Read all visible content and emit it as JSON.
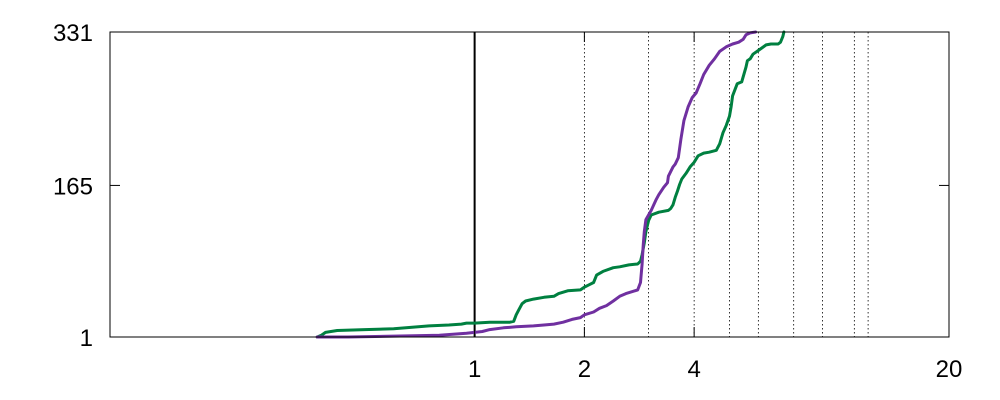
{
  "chart_data": {
    "type": "line",
    "title": "",
    "xlabel": "",
    "ylabel": "",
    "x_scale": "log",
    "xlim": [
      0.1,
      20
    ],
    "ylim": [
      1,
      331
    ],
    "x_ticks": [
      {
        "value": 1,
        "label": "1"
      },
      {
        "value": 2,
        "label": "2"
      },
      {
        "value": 4,
        "label": "4"
      },
      {
        "value": 20,
        "label": "20"
      }
    ],
    "y_ticks": [
      {
        "value": 1,
        "label": "1"
      },
      {
        "value": 165,
        "label": "165"
      },
      {
        "value": 331,
        "label": "331"
      }
    ],
    "reference_lines": {
      "solid": [
        1
      ],
      "dotted": [
        2,
        3,
        4,
        5,
        6,
        7.5,
        9,
        11,
        12
      ]
    },
    "grid": false,
    "legend": "none",
    "series": [
      {
        "color": "#008040",
        "points": [
          [
            0.37,
            1
          ],
          [
            0.38,
            3
          ],
          [
            0.39,
            6
          ],
          [
            0.42,
            8
          ],
          [
            0.5,
            9
          ],
          [
            0.6,
            10
          ],
          [
            0.75,
            13
          ],
          [
            0.85,
            14
          ],
          [
            0.92,
            15
          ],
          [
            0.95,
            16
          ],
          [
            1.0,
            16
          ],
          [
            1.1,
            17
          ],
          [
            1.25,
            17
          ],
          [
            1.28,
            18
          ],
          [
            1.3,
            25
          ],
          [
            1.32,
            30
          ],
          [
            1.35,
            37
          ],
          [
            1.38,
            40
          ],
          [
            1.45,
            42
          ],
          [
            1.55,
            44
          ],
          [
            1.65,
            45
          ],
          [
            1.7,
            48
          ],
          [
            1.8,
            51
          ],
          [
            1.95,
            52
          ],
          [
            2.0,
            55
          ],
          [
            2.05,
            57
          ],
          [
            2.12,
            60
          ],
          [
            2.16,
            68
          ],
          [
            2.25,
            72
          ],
          [
            2.4,
            76
          ],
          [
            2.5,
            77
          ],
          [
            2.65,
            79
          ],
          [
            2.8,
            80
          ],
          [
            2.85,
            83
          ],
          [
            2.88,
            90
          ],
          [
            2.92,
            103
          ],
          [
            2.95,
            115
          ],
          [
            3.0,
            127
          ],
          [
            3.05,
            133
          ],
          [
            3.2,
            136
          ],
          [
            3.4,
            138
          ],
          [
            3.45,
            140
          ],
          [
            3.5,
            144
          ],
          [
            3.55,
            152
          ],
          [
            3.6,
            159
          ],
          [
            3.65,
            166
          ],
          [
            3.7,
            172
          ],
          [
            3.8,
            178
          ],
          [
            3.9,
            185
          ],
          [
            4.0,
            190
          ],
          [
            4.1,
            197
          ],
          [
            4.25,
            200
          ],
          [
            4.4,
            201
          ],
          [
            4.6,
            203
          ],
          [
            4.7,
            210
          ],
          [
            4.8,
            222
          ],
          [
            4.9,
            230
          ],
          [
            5.0,
            240
          ],
          [
            5.05,
            250
          ],
          [
            5.1,
            262
          ],
          [
            5.25,
            275
          ],
          [
            5.4,
            277
          ],
          [
            5.55,
            293
          ],
          [
            5.6,
            300
          ],
          [
            5.7,
            302
          ],
          [
            5.8,
            307
          ],
          [
            6.0,
            311
          ],
          [
            6.3,
            317
          ],
          [
            6.5,
            318
          ],
          [
            6.8,
            318
          ],
          [
            6.9,
            320
          ],
          [
            7.0,
            326
          ],
          [
            7.05,
            331
          ]
        ]
      },
      {
        "color": "#7030A0",
        "points": [
          [
            0.37,
            1
          ],
          [
            0.45,
            1
          ],
          [
            0.6,
            2
          ],
          [
            0.8,
            3
          ],
          [
            0.95,
            5
          ],
          [
            1.05,
            7
          ],
          [
            1.1,
            9
          ],
          [
            1.2,
            11
          ],
          [
            1.3,
            12
          ],
          [
            1.45,
            13
          ],
          [
            1.55,
            14
          ],
          [
            1.65,
            15
          ],
          [
            1.75,
            17
          ],
          [
            1.85,
            20
          ],
          [
            1.95,
            22
          ],
          [
            2.0,
            25
          ],
          [
            2.12,
            28
          ],
          [
            2.2,
            32
          ],
          [
            2.3,
            35
          ],
          [
            2.4,
            40
          ],
          [
            2.5,
            45
          ],
          [
            2.6,
            48
          ],
          [
            2.8,
            52
          ],
          [
            2.85,
            60
          ],
          [
            2.88,
            80
          ],
          [
            2.9,
            100
          ],
          [
            2.92,
            115
          ],
          [
            2.95,
            128
          ],
          [
            3.05,
            138
          ],
          [
            3.15,
            150
          ],
          [
            3.2,
            155
          ],
          [
            3.3,
            163
          ],
          [
            3.38,
            168
          ],
          [
            3.4,
            175
          ],
          [
            3.5,
            185
          ],
          [
            3.55,
            188
          ],
          [
            3.62,
            195
          ],
          [
            3.68,
            215
          ],
          [
            3.75,
            235
          ],
          [
            3.85,
            250
          ],
          [
            3.95,
            260
          ],
          [
            4.05,
            265
          ],
          [
            4.15,
            275
          ],
          [
            4.25,
            285
          ],
          [
            4.4,
            295
          ],
          [
            4.55,
            302
          ],
          [
            4.7,
            310
          ],
          [
            4.9,
            315
          ],
          [
            5.1,
            318
          ],
          [
            5.3,
            320
          ],
          [
            5.45,
            323
          ],
          [
            5.55,
            328
          ],
          [
            5.7,
            330
          ],
          [
            5.9,
            331
          ]
        ]
      }
    ]
  }
}
